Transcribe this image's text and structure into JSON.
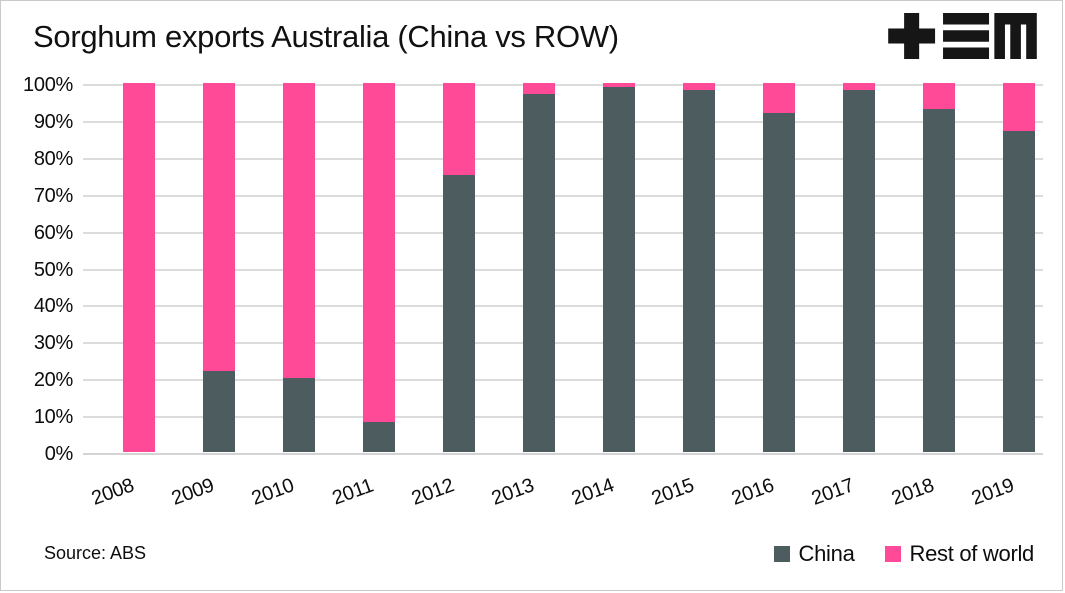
{
  "header": {
    "title": "Sorghum exports Australia (China vs ROW)"
  },
  "logo": {
    "name": "tem-logo",
    "color": "#161616"
  },
  "footer": {
    "source": "Source: ABS"
  },
  "colors": {
    "china": "#4d5c5f",
    "rest_of_world": "#ff4a97",
    "gridline": "#dcdcdc",
    "text": "#101010",
    "border": "#c9c9c9"
  },
  "chart_data": {
    "type": "bar",
    "stacked": true,
    "title": "Sorghum exports Australia (China vs ROW)",
    "categories": [
      "2008",
      "2009",
      "2010",
      "2011",
      "2012",
      "2013",
      "2014",
      "2015",
      "2016",
      "2017",
      "2018",
      "2019"
    ],
    "series": [
      {
        "name": "China",
        "color": "#4d5c5f",
        "values": [
          0,
          22,
          20,
          8,
          75,
          97,
          99,
          98,
          92,
          98,
          93,
          87
        ]
      },
      {
        "name": "Rest of world",
        "color": "#ff4a97",
        "values": [
          100,
          78,
          80,
          92,
          25,
          3,
          1,
          2,
          8,
          2,
          7,
          13
        ]
      }
    ],
    "units": "percent of total sorghum exports",
    "xlabel": "",
    "ylabel": "",
    "ylim": [
      0,
      100
    ],
    "ytick_step": 10,
    "yticks": [
      "0%",
      "10%",
      "20%",
      "30%",
      "40%",
      "50%",
      "60%",
      "70%",
      "80%",
      "90%",
      "100%"
    ],
    "grid": true,
    "x_label_rotation_deg": -20,
    "legend_position": "bottom-right",
    "source": "Source: ABS"
  }
}
